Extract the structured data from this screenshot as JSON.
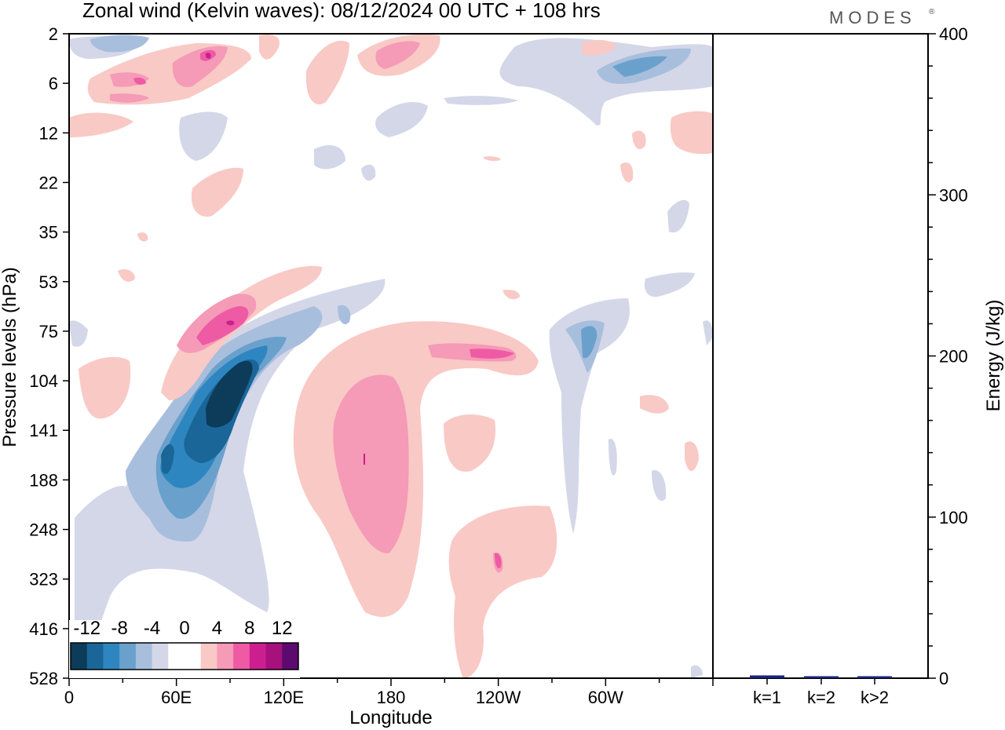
{
  "chart_data": [
    {
      "type": "heatmap",
      "title": "Zonal wind (Kelvin waves):  08/12/2024  00 UTC  + 108 hrs",
      "xlabel": "Longitude",
      "ylabel": "Pressure levels (hPa)",
      "x_ticks": [
        "0",
        "60E",
        "120E",
        "180",
        "120W",
        "60W"
      ],
      "x_tick_degrees": [
        0,
        60,
        120,
        180,
        240,
        300
      ],
      "xlim": [
        0,
        360
      ],
      "y_ticks": [
        "2",
        "6",
        "12",
        "22",
        "35",
        "53",
        "75",
        "104",
        "141",
        "188",
        "248",
        "323",
        "416",
        "528"
      ],
      "yscale": "pressure levels (log-like)",
      "colorbar": {
        "labels": [
          "-12",
          "-8",
          "-4",
          "0",
          "4",
          "8",
          "12"
        ],
        "colors": [
          "#0d3b5a",
          "#1a6699",
          "#2e86c1",
          "#6aa1cc",
          "#a8bedd",
          "#d4d7e8",
          "#ffffff",
          "#ffffff",
          "#f9c9c5",
          "#f59ab7",
          "#ee5ba4",
          "#cc1f8f",
          "#a6117e",
          "#5c0a6e"
        ]
      },
      "features": [
        {
          "sign": "negative",
          "lon_range": [
            40,
            115
          ],
          "pressure_range": [
            75,
            416
          ],
          "min_value": -14
        },
        {
          "sign": "positive",
          "lon_range": [
            130,
            260
          ],
          "pressure_range": [
            75,
            416
          ],
          "max_value": 9
        },
        {
          "sign": "positive",
          "lon_range": [
            50,
            140
          ],
          "pressure_range": [
            53,
            141
          ],
          "max_value": 11
        },
        {
          "sign": "positive",
          "lon_range": [
            200,
            270
          ],
          "pressure_range": [
            248,
            528
          ],
          "max_value": 7
        }
      ]
    },
    {
      "type": "bar",
      "categories": [
        "k=1",
        "k=2",
        "k>2"
      ],
      "values": [
        1.0,
        0.5,
        0.5
      ],
      "ylabel": "Energy (J/kg)",
      "ylim": [
        0,
        400
      ],
      "y_ticks": [
        "0",
        "100",
        "200",
        "300",
        "400"
      ],
      "bar_color": "#1a237e"
    }
  ],
  "brand": "MODES",
  "brand_mark": "®"
}
